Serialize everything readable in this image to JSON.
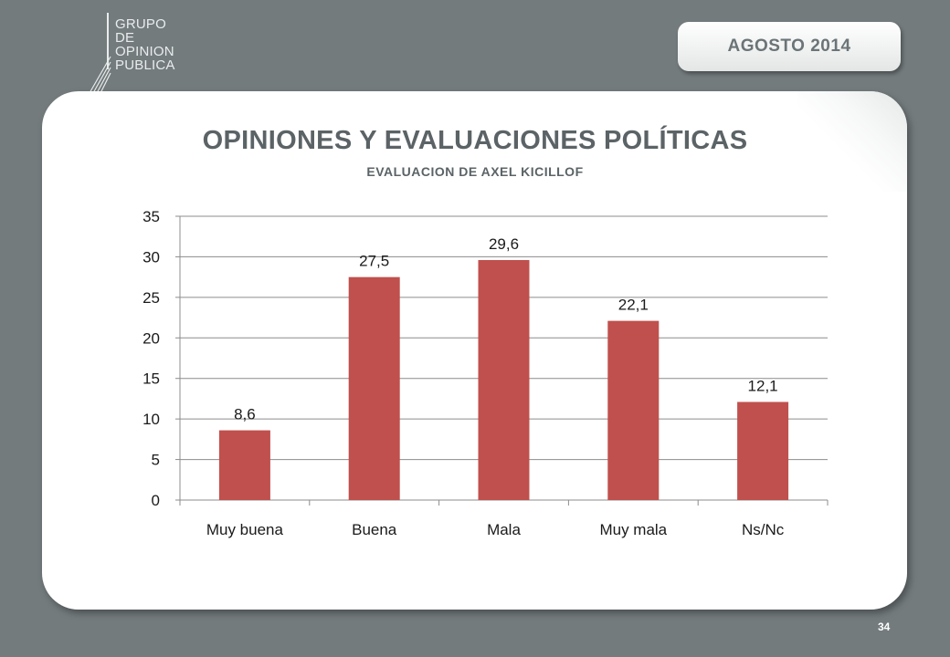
{
  "header": {
    "logo_lines": [
      "GRUPO",
      "DE",
      "OPINION",
      "PUBLICA"
    ],
    "date_label": "AGOSTO 2014"
  },
  "footer": {
    "page_number": "34"
  },
  "chart_data": {
    "type": "bar",
    "title": "OPINIONES Y EVALUACIONES POLÍTICAS",
    "subtitle": "EVALUACION DE AXEL KICILLOF",
    "categories": [
      "Muy buena",
      "Buena",
      "Mala",
      "Muy mala",
      "Ns/Nc"
    ],
    "values": [
      8.6,
      27.5,
      29.6,
      22.1,
      12.1
    ],
    "value_labels": [
      "8,6",
      "27,5",
      "29,6",
      "22,1",
      "12,1"
    ],
    "ylim": [
      0,
      35
    ],
    "yticks": [
      0,
      5,
      10,
      15,
      20,
      25,
      30,
      35
    ],
    "grid": true,
    "bar_color": "#c0504d",
    "xlabel": "",
    "ylabel": ""
  }
}
